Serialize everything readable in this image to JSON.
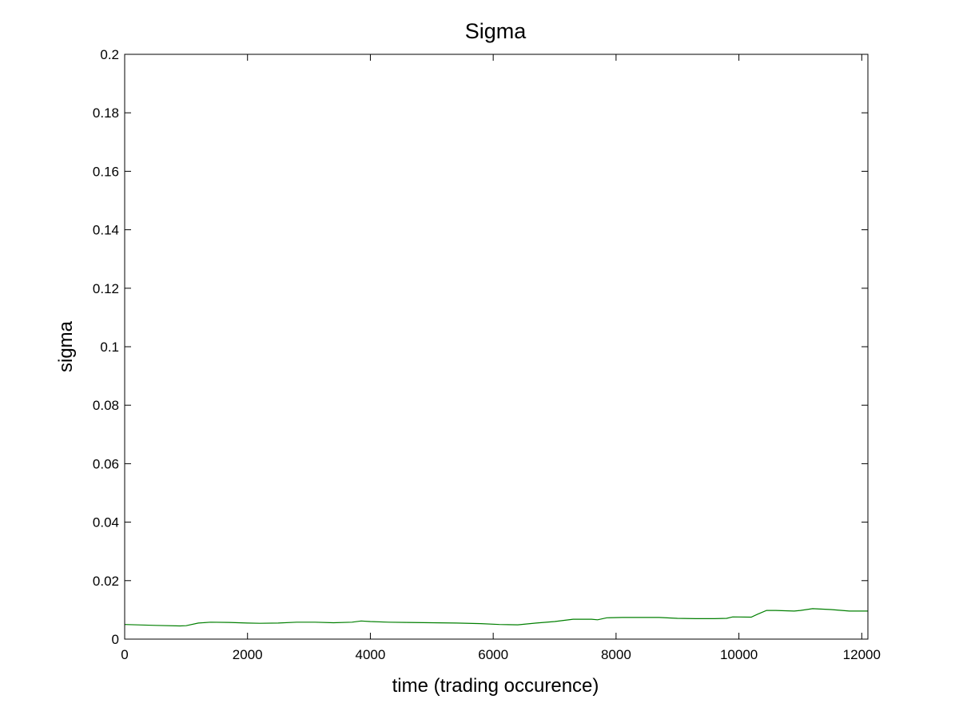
{
  "chart_data": {
    "type": "line",
    "title": "Sigma",
    "xlabel": "time (trading occurence)",
    "ylabel": "sigma",
    "xlim": [
      0,
      12100
    ],
    "ylim": [
      0,
      0.2
    ],
    "x_ticks": [
      0,
      2000,
      4000,
      6000,
      8000,
      10000,
      12000
    ],
    "y_ticks": [
      0,
      0.02,
      0.04,
      0.06,
      0.08,
      0.1,
      0.12,
      0.14,
      0.16,
      0.18,
      0.2
    ],
    "x_tick_labels": [
      "0",
      "2000",
      "4000",
      "6000",
      "8000",
      "10000",
      "12000"
    ],
    "y_tick_labels": [
      "0",
      "0.02",
      "0.04",
      "0.06",
      "0.08",
      "0.1",
      "0.12",
      "0.14",
      "0.16",
      "0.18",
      "0.2"
    ],
    "grid": false,
    "line_color": "#007f00",
    "series": [
      {
        "x": [
          0,
          500,
          900,
          1000,
          1200,
          1400,
          1700,
          2000,
          2200,
          2500,
          2800,
          3100,
          3400,
          3700,
          3850,
          4000,
          4300,
          4600,
          5000,
          5400,
          5800,
          6100,
          6400,
          6550,
          6700,
          7000,
          7300,
          7600,
          7700,
          7850,
          8100,
          8400,
          8700,
          9000,
          9300,
          9600,
          9800,
          9900,
          10200,
          10300,
          10450,
          10600,
          10900,
          11000,
          11200,
          11500,
          11800,
          12100
        ],
        "values": [
          0.005,
          0.0047,
          0.0045,
          0.0046,
          0.0055,
          0.0058,
          0.0057,
          0.0055,
          0.0054,
          0.0055,
          0.0058,
          0.0058,
          0.0056,
          0.0058,
          0.0062,
          0.006,
          0.0058,
          0.0057,
          0.0056,
          0.0055,
          0.0053,
          0.005,
          0.0049,
          0.0052,
          0.0055,
          0.006,
          0.0068,
          0.0068,
          0.0066,
          0.0073,
          0.0074,
          0.0074,
          0.0074,
          0.0071,
          0.007,
          0.007,
          0.0071,
          0.0076,
          0.0075,
          0.0085,
          0.0098,
          0.0098,
          0.0096,
          0.0098,
          0.0104,
          0.0101,
          0.0096,
          0.0096
        ]
      }
    ]
  }
}
